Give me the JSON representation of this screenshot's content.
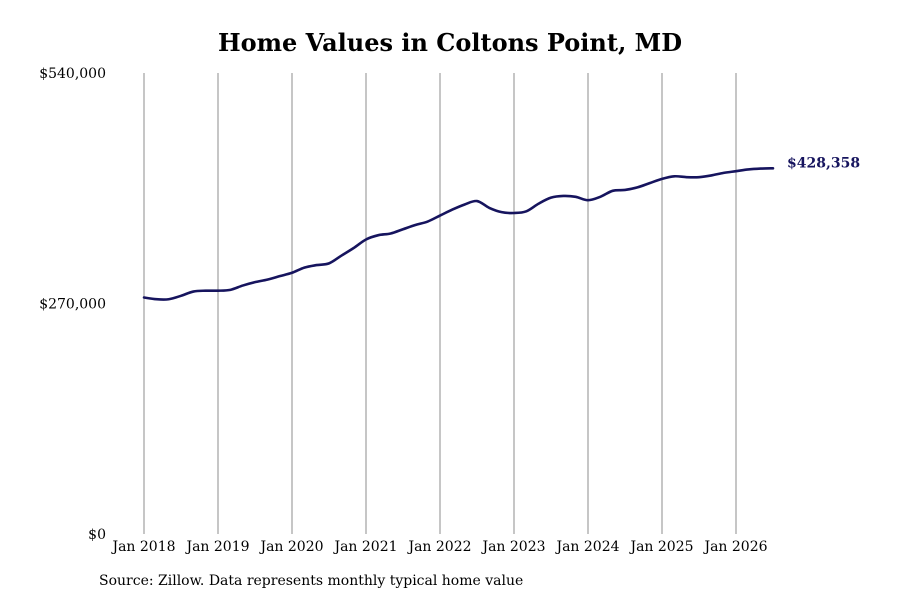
{
  "chart_data": {
    "type": "line",
    "title": "Home Values in Coltons Point, MD",
    "xlabel": "",
    "ylabel": "",
    "ylim": [
      0,
      540000
    ],
    "y_ticks": [
      0,
      270000,
      540000
    ],
    "y_tick_labels": [
      "$0",
      "$270,000",
      "$540,000"
    ],
    "x_ticks": [
      "2018-01",
      "2019-01",
      "2020-01",
      "2021-01",
      "2022-01",
      "2023-01",
      "2024-01",
      "2025-01",
      "2026-01"
    ],
    "x_tick_labels": [
      "Jan 2018",
      "Jan 2019",
      "Jan 2020",
      "Jan 2021",
      "Jan 2022",
      "Jan 2023",
      "Jan 2024",
      "Jan 2025",
      "Jan 2026"
    ],
    "grid": "vertical",
    "colors": {
      "line": "#16145e",
      "grid": "#8c8c8c",
      "end_label": "#16145e"
    },
    "end_label": "$428,358",
    "series": [
      {
        "x": [
          "2018-01",
          "2018-03",
          "2018-05",
          "2018-07",
          "2018-09",
          "2018-11",
          "2019-01",
          "2019-03",
          "2019-05",
          "2019-07",
          "2019-09",
          "2019-11",
          "2020-01",
          "2020-03",
          "2020-05",
          "2020-07",
          "2020-09",
          "2020-11",
          "2021-01",
          "2021-03",
          "2021-05",
          "2021-07",
          "2021-09",
          "2021-11",
          "2022-01",
          "2022-03",
          "2022-05",
          "2022-07",
          "2022-09",
          "2022-11",
          "2023-01",
          "2023-03",
          "2023-05",
          "2023-07",
          "2023-09",
          "2023-11",
          "2024-01",
          "2024-03",
          "2024-05",
          "2024-07",
          "2024-09",
          "2024-11",
          "2025-01",
          "2025-03",
          "2025-05",
          "2025-07",
          "2025-09",
          "2025-11",
          "2026-01",
          "2026-03",
          "2026-05",
          "2026-07"
        ],
        "values": [
          277000,
          275000,
          275000,
          279000,
          284000,
          285000,
          285000,
          286000,
          291000,
          295000,
          298000,
          302000,
          306000,
          312000,
          315000,
          317000,
          326000,
          335000,
          345000,
          350000,
          352000,
          357000,
          362000,
          366000,
          373000,
          380000,
          386000,
          390000,
          382000,
          377000,
          376000,
          378000,
          387000,
          394000,
          396000,
          395000,
          391000,
          395000,
          402000,
          403000,
          406000,
          411000,
          416000,
          419000,
          418000,
          418000,
          420000,
          423000,
          425000,
          427000,
          428000,
          428358
        ]
      }
    ]
  },
  "footer": {
    "source": "Source: Zillow. Data represents monthly typical home value"
  }
}
